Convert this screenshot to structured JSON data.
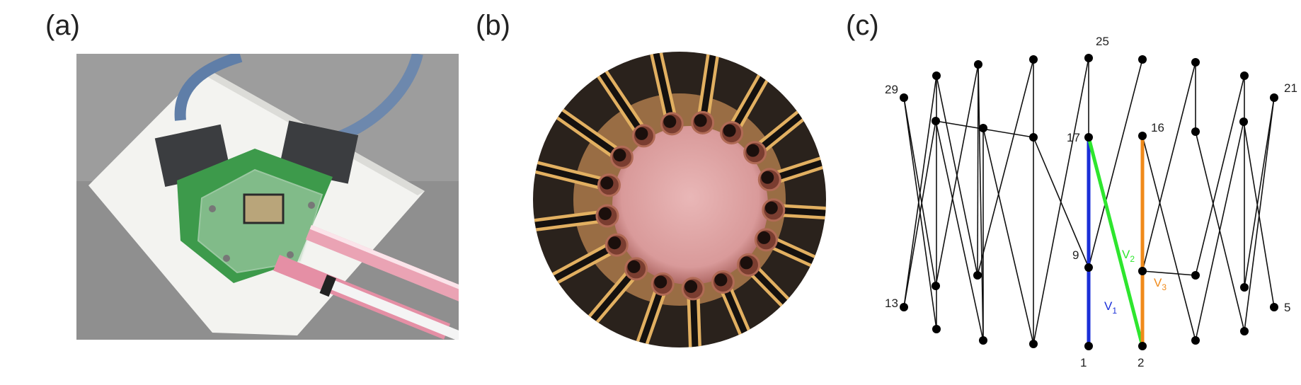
{
  "panels": {
    "a": {
      "label": "(a)"
    },
    "b": {
      "label": "(b)"
    },
    "c": {
      "label": "(c)"
    }
  },
  "graph": {
    "node_labels": {
      "n29": "29",
      "n13": "13",
      "n25": "25",
      "n17": "17",
      "n9": "9",
      "n1": "1",
      "n16": "16",
      "n2": "2",
      "n21": "21",
      "n5": "5"
    },
    "highlight_edges": {
      "v1": {
        "label": "V",
        "sub": "1",
        "color": "#1a2fd8"
      },
      "v2": {
        "label": "V",
        "sub": "2",
        "color": "#2ee62e"
      },
      "v3": {
        "label": "V",
        "sub": "3",
        "color": "#f08a1a"
      }
    },
    "edge_color": "#111111"
  },
  "colors": {
    "paper_bg": "#9a9a9a",
    "towel": "#f4f4f2",
    "pcb_green": "#2e8f3e",
    "chip_metal": "#b9a57a",
    "liquid_pink": "#e9a3b2",
    "trace_gold": "#d9a24a",
    "trace_black": "#1a1412"
  }
}
